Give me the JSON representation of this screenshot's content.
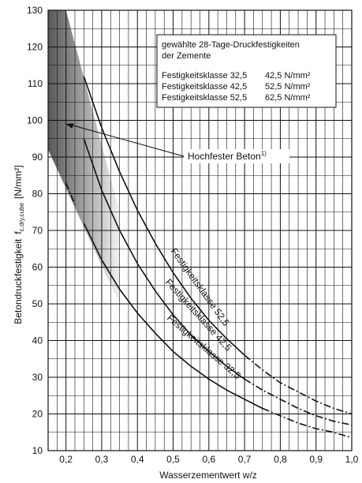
{
  "chart_data": {
    "type": "line",
    "xlabel": "Wasserzementwert w/z",
    "ylabel": "Betondruckfestigkeit",
    "ylabel_symbol": "f",
    "ylabel_subscript": "c,dry,cube",
    "ylabel_unit": "[N/mm²]",
    "xlim": [
      0.15,
      1.0
    ],
    "ylim": [
      10,
      130
    ],
    "x_ticks": [
      0.2,
      0.3,
      0.4,
      0.5,
      0.6,
      0.7,
      0.8,
      0.9,
      1.0
    ],
    "x_tick_labels": [
      "0,2",
      "0,3",
      "0,4",
      "0,5",
      "0,6",
      "0,7",
      "0,8",
      "0,9",
      "1,0"
    ],
    "y_ticks": [
      10,
      20,
      30,
      40,
      50,
      60,
      70,
      80,
      90,
      100,
      110,
      120,
      130
    ],
    "grid": true,
    "legend_box": {
      "title_line1": "gewählte 28-Tage-Druckfestigkeiten",
      "title_line2": "der Zemente",
      "rows": [
        {
          "klasse": "Festigkeitsklasse 32,5",
          "wert": "42,5 N/mm²"
        },
        {
          "klasse": "Festigkeitsklasse 42,5",
          "wert": "52,5 N/mm²"
        },
        {
          "klasse": "Festigkeitsklasse 52,5",
          "wert": "62,5 N/mm²"
        }
      ]
    },
    "annotation": {
      "text": "Hochfester Beton",
      "superscript": "1)",
      "target": [
        0.2,
        99
      ]
    },
    "region": {
      "name": "Hochfester Beton",
      "polygon": [
        [
          0.15,
          130
        ],
        [
          0.2,
          130
        ],
        [
          0.35,
          75
        ],
        [
          0.35,
          50
        ],
        [
          0.15,
          92
        ]
      ]
    },
    "series": [
      {
        "name": "Festigkeitsklasse 52,5",
        "x": [
          0.25,
          0.3,
          0.35,
          0.4,
          0.45,
          0.5,
          0.55,
          0.6,
          0.65,
          0.7,
          0.75,
          0.8,
          0.85,
          0.9,
          0.95,
          1.0
        ],
        "y": [
          112,
          98,
          86,
          75.5,
          66.5,
          58.5,
          51.5,
          45.5,
          40.5,
          36,
          32,
          28.5,
          26,
          23.5,
          21.5,
          20
        ],
        "dashed_from": 0.7,
        "dashed_to": 0.25
      },
      {
        "name": "Festigkeitsklasse 42,5",
        "x": [
          0.225,
          0.25,
          0.3,
          0.35,
          0.4,
          0.45,
          0.5,
          0.55,
          0.6,
          0.65,
          0.7,
          0.75,
          0.8,
          0.85,
          0.9,
          0.95,
          1.0
        ],
        "y": [
          100,
          95,
          81,
          70,
          61,
          53.5,
          47,
          41.5,
          37,
          33,
          29.5,
          26.5,
          24,
          21.5,
          19.5,
          18,
          17
        ],
        "dashed_from": 0.7,
        "dashed_to": 0.24
      },
      {
        "name": "Festigkeitsklasse 32,5",
        "x": [
          0.2,
          0.225,
          0.25,
          0.3,
          0.35,
          0.4,
          0.45,
          0.5,
          0.55,
          0.6,
          0.65,
          0.7,
          0.75,
          0.8,
          0.85,
          0.9,
          0.95,
          1.0
        ],
        "y": [
          83,
          77,
          72,
          62,
          54,
          47.5,
          42,
          37,
          33,
          29.5,
          26.5,
          24,
          21.5,
          19.5,
          17.5,
          16,
          15,
          13.5
        ],
        "dashed_from": 0.75,
        "dashed_to": 0.23
      }
    ]
  }
}
